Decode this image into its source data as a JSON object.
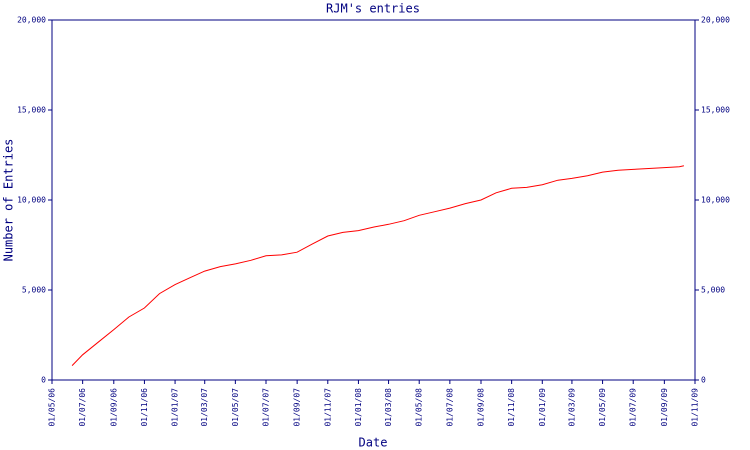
{
  "chart_data": {
    "type": "line",
    "title": "RJM's entries",
    "xlabel": "Date",
    "ylabel": "Number of Entries",
    "x": [
      "2006-06-10",
      "2006-07-01",
      "2006-08-01",
      "2006-09-01",
      "2006-10-01",
      "2006-11-01",
      "2006-12-01",
      "2007-01-01",
      "2007-02-01",
      "2007-03-01",
      "2007-04-01",
      "2007-05-01",
      "2007-06-01",
      "2007-07-01",
      "2007-08-01",
      "2007-09-01",
      "2007-10-01",
      "2007-11-01",
      "2007-12-01",
      "2008-01-01",
      "2008-02-01",
      "2008-03-01",
      "2008-04-01",
      "2008-05-01",
      "2008-06-01",
      "2008-07-01",
      "2008-08-01",
      "2008-09-01",
      "2008-10-01",
      "2008-11-01",
      "2008-12-01",
      "2009-01-01",
      "2009-02-01",
      "2009-03-01",
      "2009-04-01",
      "2009-05-01",
      "2009-06-01",
      "2009-07-01",
      "2009-08-01",
      "2009-09-01",
      "2009-10-01",
      "2009-10-10"
    ],
    "series": [
      {
        "name": "entries",
        "color": "#ff0000",
        "values": [
          800,
          1400,
          2100,
          2800,
          3500,
          4000,
          4800,
          5300,
          5700,
          6050,
          6300,
          6450,
          6650,
          6900,
          6950,
          7100,
          7550,
          8000,
          8200,
          8300,
          8500,
          8650,
          8850,
          9150,
          9350,
          9550,
          9800,
          10000,
          10400,
          10650,
          10700,
          10850,
          11100,
          11200,
          11350,
          11550,
          11650,
          11700,
          11750,
          11800,
          11850,
          11900
        ]
      }
    ],
    "xlim": [
      "2006-05-01",
      "2009-11-01"
    ],
    "xticks": [
      {
        "value": "2006-05-01",
        "label": "01/05/06"
      },
      {
        "value": "2006-07-01",
        "label": "01/07/06"
      },
      {
        "value": "2006-09-01",
        "label": "01/09/06"
      },
      {
        "value": "2006-11-01",
        "label": "01/11/06"
      },
      {
        "value": "2007-01-01",
        "label": "01/01/07"
      },
      {
        "value": "2007-03-01",
        "label": "01/03/07"
      },
      {
        "value": "2007-05-01",
        "label": "01/05/07"
      },
      {
        "value": "2007-07-01",
        "label": "01/07/07"
      },
      {
        "value": "2007-09-01",
        "label": "01/09/07"
      },
      {
        "value": "2007-11-01",
        "label": "01/11/07"
      },
      {
        "value": "2008-01-01",
        "label": "01/01/08"
      },
      {
        "value": "2008-03-01",
        "label": "01/03/08"
      },
      {
        "value": "2008-05-01",
        "label": "01/05/08"
      },
      {
        "value": "2008-07-01",
        "label": "01/07/08"
      },
      {
        "value": "2008-09-01",
        "label": "01/09/08"
      },
      {
        "value": "2008-11-01",
        "label": "01/11/08"
      },
      {
        "value": "2009-01-01",
        "label": "01/01/09"
      },
      {
        "value": "2009-03-01",
        "label": "01/03/09"
      },
      {
        "value": "2009-05-01",
        "label": "01/05/09"
      },
      {
        "value": "2009-07-01",
        "label": "01/07/09"
      },
      {
        "value": "2009-09-01",
        "label": "01/09/09"
      },
      {
        "value": "2009-11-01",
        "label": "01/11/09"
      }
    ],
    "ylim": [
      0,
      20000
    ],
    "yticks": [
      0,
      {
        "value": 5000,
        "label": "5,000"
      },
      {
        "value": 10000,
        "label": "10,000"
      },
      {
        "value": 15000,
        "label": "15,000"
      },
      {
        "value": 20000,
        "label": "20,000"
      }
    ],
    "axis_color": "#000080"
  }
}
